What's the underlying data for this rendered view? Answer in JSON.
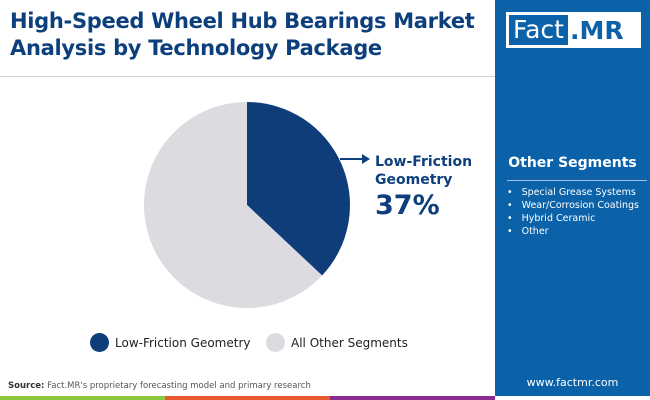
{
  "title": "High-Speed Wheel Hub Bearings Market Analysis by Technology Package",
  "logo": {
    "part1": "Fact",
    "part2": ".MR"
  },
  "other_segments": {
    "title": "Other Segments",
    "items": [
      "Special Grease Systems",
      "Wear/Corrosion Coatings",
      "Hybrid Ceramic",
      "Other"
    ]
  },
  "source_label": "Source:",
  "source_text": "Fact.MR's proprietary forecasting model and primary research",
  "website": "www.factmr.com",
  "colors": {
    "primary": "#0e3d7a",
    "other": "#dcdbe0",
    "panel": "#0b62a8",
    "bar": [
      "#8dc63f",
      "#e8592b",
      "#8b2c8f"
    ]
  },
  "chart_data": {
    "type": "pie",
    "slices": [
      {
        "name": "Low-Friction Geometry",
        "value": 37,
        "color": "#0e3d7a"
      },
      {
        "name": "All Other Segments",
        "value": 63,
        "color": "#dcdbe0"
      }
    ],
    "callout": {
      "label_line1": "Low-Friction",
      "label_line2": "Geometry",
      "value": "37%"
    },
    "legend": [
      "Low-Friction Geometry",
      "All Other Segments"
    ],
    "legend_placement": "bottom"
  }
}
